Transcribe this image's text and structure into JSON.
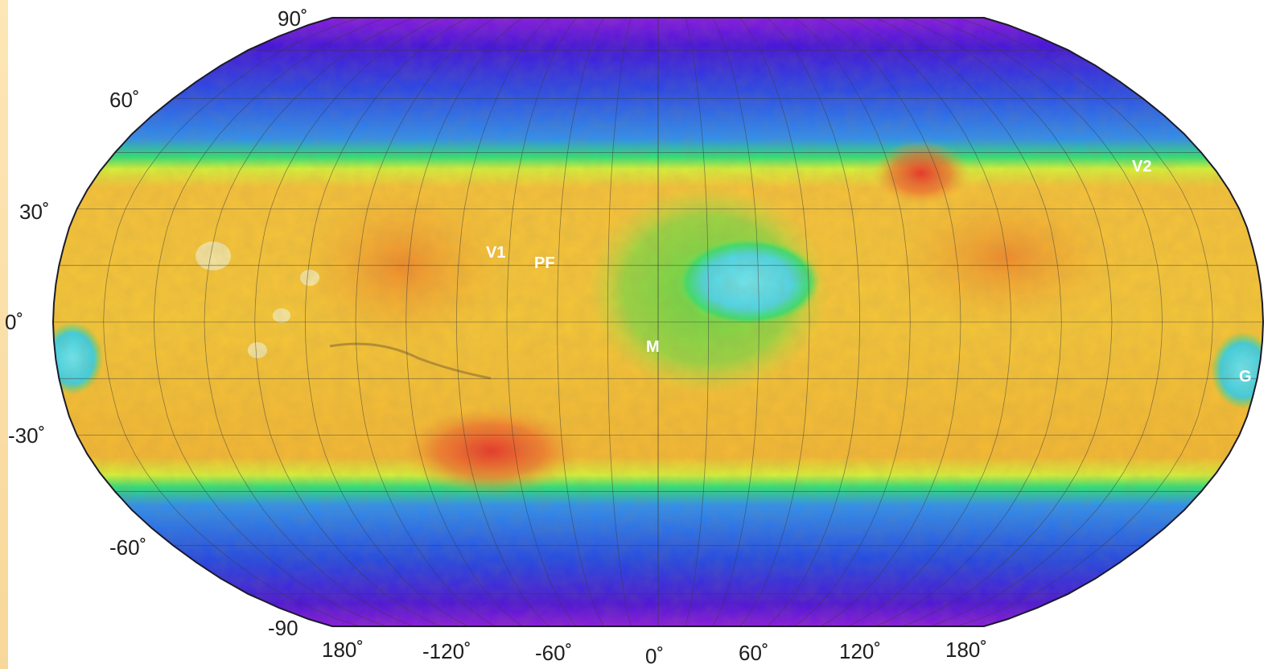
{
  "map": {
    "projection": "robinson",
    "colors": {
      "polar": "#3a10d8",
      "high_lat": "#1f5be6",
      "mid_lat": "#3b9ff0",
      "transition": "#2fe07a",
      "lowland": "#f4c83a",
      "highland": "#f2a52e",
      "peak": "#e9402a",
      "basin": "#66e0ea"
    },
    "lat_labels": [
      "90˚",
      "60˚",
      "30˚",
      "0˚",
      "-30˚",
      "-60˚",
      "-90"
    ],
    "lon_labels": [
      "180˚",
      "-120˚",
      "-60˚",
      "0˚",
      "60˚",
      "120˚",
      "180˚"
    ],
    "sites": [
      "V1",
      "PF",
      "M",
      "V2",
      "G"
    ]
  }
}
